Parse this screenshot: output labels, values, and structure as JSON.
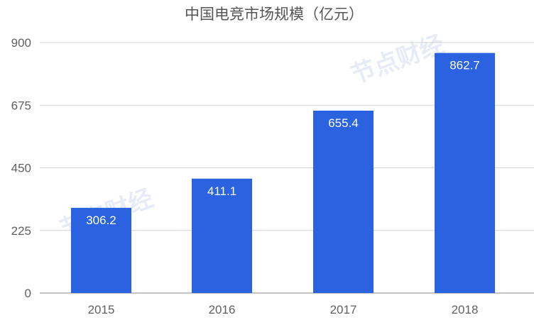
{
  "chart_data": {
    "type": "bar",
    "title": "中国电竞市场规模（亿元）",
    "categories": [
      "2015",
      "2016",
      "2017",
      "2018"
    ],
    "values": [
      306.2,
      411.1,
      655.4,
      862.7
    ],
    "data_labels": [
      "306.2",
      "411.1",
      "655.4",
      "862.7"
    ],
    "ylim": [
      0,
      900
    ],
    "yticks": [
      "0",
      "225",
      "450",
      "675",
      "900"
    ],
    "xlabel": "",
    "ylabel": "",
    "grid": true,
    "legend": "none",
    "bar_color": "#2a62df"
  },
  "watermark": "节点财经"
}
